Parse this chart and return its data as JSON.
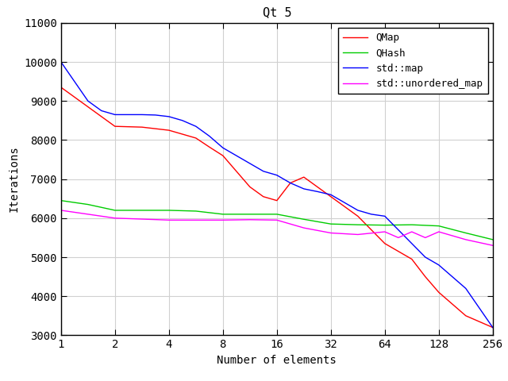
{
  "title": "Qt 5",
  "xlabel": "Number of elements",
  "ylabel": "Iterations",
  "x_ticks": [
    1,
    2,
    4,
    8,
    16,
    32,
    64,
    128,
    256
  ],
  "x_tick_labels": [
    "1",
    "2",
    "4",
    "8",
    "16",
    "32",
    "64",
    "128",
    "256"
  ],
  "ylim": [
    3000,
    11000
  ],
  "y_ticks": [
    3000,
    4000,
    5000,
    6000,
    7000,
    8000,
    9000,
    10000,
    11000
  ],
  "series": [
    {
      "label": "QMap",
      "color": "#ff0000",
      "x_log2": [
        0.0,
        0.25,
        0.5,
        0.75,
        1.0,
        1.25,
        1.5,
        1.75,
        2.0,
        2.25,
        2.5,
        2.75,
        3.0,
        3.25,
        3.5,
        3.75,
        4.0,
        4.25,
        4.5,
        4.75,
        5.0,
        5.25,
        5.5,
        5.75,
        6.0,
        6.25,
        6.5,
        6.75,
        7.0,
        7.25,
        7.5,
        7.75,
        8.0
      ],
      "y": [
        9350,
        9100,
        8850,
        8600,
        8350,
        8340,
        8330,
        8290,
        8250,
        8150,
        8050,
        7820,
        7600,
        7200,
        6800,
        6550,
        6450,
        6900,
        7050,
        6800,
        6550,
        6300,
        6050,
        5700,
        5350,
        5150,
        4950,
        4500,
        4100,
        3800,
        3500,
        3350,
        3200
      ]
    },
    {
      "label": "QHash",
      "color": "#00cc00",
      "x_log2": [
        0.0,
        0.5,
        1.0,
        1.5,
        2.0,
        2.5,
        3.0,
        3.5,
        4.0,
        4.5,
        5.0,
        5.5,
        6.0,
        6.5,
        7.0,
        7.5,
        8.0
      ],
      "y": [
        6450,
        6350,
        6200,
        6200,
        6200,
        6180,
        6100,
        6100,
        6100,
        5970,
        5850,
        5830,
        5820,
        5830,
        5800,
        5620,
        5450
      ]
    },
    {
      "label": "std::map",
      "color": "#0000ff",
      "x_log2": [
        0.0,
        0.25,
        0.5,
        0.75,
        1.0,
        1.25,
        1.5,
        1.75,
        2.0,
        2.25,
        2.5,
        2.75,
        3.0,
        3.25,
        3.5,
        3.75,
        4.0,
        4.25,
        4.5,
        4.75,
        5.0,
        5.25,
        5.5,
        5.75,
        6.0,
        6.25,
        6.5,
        6.75,
        7.0,
        7.25,
        7.5,
        7.75,
        8.0
      ],
      "y": [
        10000,
        9500,
        9000,
        8750,
        8650,
        8650,
        8650,
        8640,
        8600,
        8500,
        8350,
        8100,
        7800,
        7600,
        7400,
        7200,
        7100,
        6900,
        6750,
        6680,
        6600,
        6400,
        6200,
        6100,
        6050,
        5700,
        5350,
        5000,
        4800,
        4500,
        4200,
        3700,
        3200
      ]
    },
    {
      "label": "std::unordered_map",
      "color": "#ff00ff",
      "x_log2": [
        0.0,
        0.5,
        1.0,
        1.5,
        2.0,
        2.5,
        3.0,
        3.5,
        4.0,
        4.5,
        5.0,
        5.5,
        6.0,
        6.25,
        6.5,
        6.75,
        7.0,
        7.5,
        8.0
      ],
      "y": [
        6200,
        6100,
        6000,
        5975,
        5950,
        5950,
        5950,
        5960,
        5950,
        5750,
        5620,
        5580,
        5650,
        5500,
        5650,
        5500,
        5650,
        5450,
        5300
      ]
    }
  ],
  "background_color": "#ffffff",
  "grid_color": "#d0d0d0",
  "border_color": "#000000"
}
